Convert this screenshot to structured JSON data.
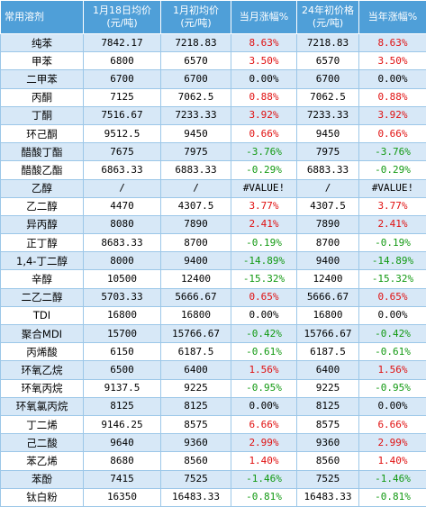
{
  "headers": [
    "常用溶剂",
    "1月18日均价\n(元/吨)",
    "1月初均价\n(元/吨)",
    "当月涨幅%",
    "24年初价格\n(元/吨)",
    "当年涨幅%"
  ],
  "rows": [
    {
      "name": "纯苯",
      "c1": "7842.17",
      "c2": "7218.83",
      "c3": "8.63%",
      "c4": "7218.83",
      "c5": "8.63%",
      "trend": "up"
    },
    {
      "name": "甲苯",
      "c1": "6800",
      "c2": "6570",
      "c3": "3.50%",
      "c4": "6570",
      "c5": "3.50%",
      "trend": "up"
    },
    {
      "name": "二甲苯",
      "c1": "6700",
      "c2": "6700",
      "c3": "0.00%",
      "c4": "6700",
      "c5": "0.00%",
      "trend": "flat"
    },
    {
      "name": "丙酮",
      "c1": "7125",
      "c2": "7062.5",
      "c3": "0.88%",
      "c4": "7062.5",
      "c5": "0.88%",
      "trend": "up"
    },
    {
      "name": "丁酮",
      "c1": "7516.67",
      "c2": "7233.33",
      "c3": "3.92%",
      "c4": "7233.33",
      "c5": "3.92%",
      "trend": "up"
    },
    {
      "name": "环己酮",
      "c1": "9512.5",
      "c2": "9450",
      "c3": "0.66%",
      "c4": "9450",
      "c5": "0.66%",
      "trend": "up"
    },
    {
      "name": "醋酸丁酯",
      "c1": "7675",
      "c2": "7975",
      "c3": "-3.76%",
      "c4": "7975",
      "c5": "-3.76%",
      "trend": "down"
    },
    {
      "name": "醋酸乙酯",
      "c1": "6863.33",
      "c2": "6883.33",
      "c3": "-0.29%",
      "c4": "6883.33",
      "c5": "-0.29%",
      "trend": "down"
    },
    {
      "name": "乙醇",
      "c1": "/",
      "c2": "/",
      "c3": "#VALUE!",
      "c4": "/",
      "c5": "#VALUE!",
      "trend": "flat"
    },
    {
      "name": "乙二醇",
      "c1": "4470",
      "c2": "4307.5",
      "c3": "3.77%",
      "c4": "4307.5",
      "c5": "3.77%",
      "trend": "up"
    },
    {
      "name": "异丙醇",
      "c1": "8080",
      "c2": "7890",
      "c3": "2.41%",
      "c4": "7890",
      "c5": "2.41%",
      "trend": "up"
    },
    {
      "name": "正丁醇",
      "c1": "8683.33",
      "c2": "8700",
      "c3": "-0.19%",
      "c4": "8700",
      "c5": "-0.19%",
      "trend": "down"
    },
    {
      "name": "1,4-丁二醇",
      "c1": "8000",
      "c2": "9400",
      "c3": "-14.89%",
      "c4": "9400",
      "c5": "-14.89%",
      "trend": "down"
    },
    {
      "name": "辛醇",
      "c1": "10500",
      "c2": "12400",
      "c3": "-15.32%",
      "c4": "12400",
      "c5": "-15.32%",
      "trend": "down"
    },
    {
      "name": "二乙二醇",
      "c1": "5703.33",
      "c2": "5666.67",
      "c3": "0.65%",
      "c4": "5666.67",
      "c5": "0.65%",
      "trend": "up"
    },
    {
      "name": "TDI",
      "c1": "16800",
      "c2": "16800",
      "c3": "0.00%",
      "c4": "16800",
      "c5": "0.00%",
      "trend": "flat"
    },
    {
      "name": "聚合MDI",
      "c1": "15700",
      "c2": "15766.67",
      "c3": "-0.42%",
      "c4": "15766.67",
      "c5": "-0.42%",
      "trend": "down"
    },
    {
      "name": "丙烯酸",
      "c1": "6150",
      "c2": "6187.5",
      "c3": "-0.61%",
      "c4": "6187.5",
      "c5": "-0.61%",
      "trend": "down"
    },
    {
      "name": "环氧乙烷",
      "c1": "6500",
      "c2": "6400",
      "c3": "1.56%",
      "c4": "6400",
      "c5": "1.56%",
      "trend": "up"
    },
    {
      "name": "环氧丙烷",
      "c1": "9137.5",
      "c2": "9225",
      "c3": "-0.95%",
      "c4": "9225",
      "c5": "-0.95%",
      "trend": "down"
    },
    {
      "name": "环氧氯丙烷",
      "c1": "8125",
      "c2": "8125",
      "c3": "0.00%",
      "c4": "8125",
      "c5": "0.00%",
      "trend": "flat"
    },
    {
      "name": "丁二烯",
      "c1": "9146.25",
      "c2": "8575",
      "c3": "6.66%",
      "c4": "8575",
      "c5": "6.66%",
      "trend": "up"
    },
    {
      "name": "己二酸",
      "c1": "9640",
      "c2": "9360",
      "c3": "2.99%",
      "c4": "9360",
      "c5": "2.99%",
      "trend": "up"
    },
    {
      "name": "苯乙烯",
      "c1": "8680",
      "c2": "8560",
      "c3": "1.40%",
      "c4": "8560",
      "c5": "1.40%",
      "trend": "up"
    },
    {
      "name": "苯酚",
      "c1": "7415",
      "c2": "7525",
      "c3": "-1.46%",
      "c4": "7525",
      "c5": "-1.46%",
      "trend": "down"
    },
    {
      "name": "钛白粉",
      "c1": "16350",
      "c2": "16483.33",
      "c3": "-0.81%",
      "c4": "16483.33",
      "c5": "-0.81%",
      "trend": "down"
    }
  ],
  "colors": {
    "header_bg": "#4f9fd8",
    "alt_row_bg": "#d7e8f7",
    "up": "#e01010",
    "down": "#119911"
  }
}
